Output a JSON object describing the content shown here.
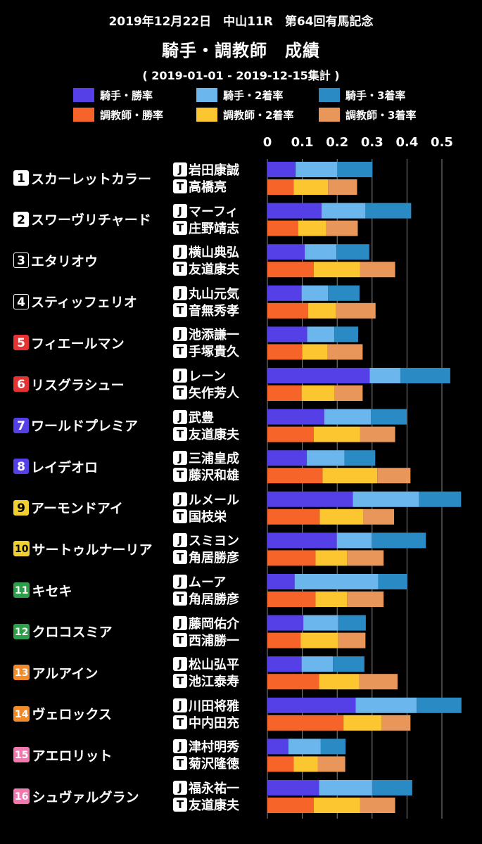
{
  "header": {
    "race": "2019年12月22日　中山11R　第64回有馬記念",
    "title": "騎手・調教師　成績",
    "period": "( 2019-01-01 - 2019-12-15集計 )"
  },
  "colors": {
    "jockey_win": "#5540e8",
    "jockey_place2": "#6cb6ee",
    "jockey_place3": "#2a8ac4",
    "trainer_win": "#f7642a",
    "trainer_place2": "#fcc630",
    "trainer_place3": "#e8965a",
    "gridline": "#888888"
  },
  "role_badges": {
    "jockey": "J",
    "trainer": "T"
  },
  "chart_data": {
    "type": "bar",
    "orientation": "horizontal",
    "stacked": true,
    "x_ticks": [
      "0",
      "0.1",
      "0.2",
      "0.3",
      "0.4",
      "0.5"
    ],
    "xlim": [
      0,
      0.55
    ],
    "grid": true,
    "legend_position": "top",
    "legend": [
      "騎手・勝率",
      "騎手・2着率",
      "騎手・3着率",
      "調教師・勝率",
      "調教師・2着率",
      "調教師・3着率"
    ],
    "horses": [
      {
        "num": "1",
        "name": "スカーレットカラー",
        "badge_bg": "#ffffff",
        "badge_fg": "#000000",
        "badge_border": "#ffffff",
        "jockey": "岩田康誠",
        "trainer": "高橋亮",
        "jockey_rates": [
          0.081,
          0.119,
          0.101
        ],
        "trainer_rates": [
          0.075,
          0.099,
          0.083
        ]
      },
      {
        "num": "2",
        "name": "スワーヴリチャード",
        "badge_bg": "#ffffff",
        "badge_fg": "#000000",
        "badge_border": "#ffffff",
        "jockey": "マーフィ",
        "trainer": "庄野靖志",
        "jockey_rates": [
          0.155,
          0.126,
          0.131
        ],
        "trainer_rates": [
          0.088,
          0.081,
          0.09
        ]
      },
      {
        "num": "3",
        "name": "エタリオウ",
        "badge_bg": "#000000",
        "badge_fg": "#ffffff",
        "badge_border": "#ffffff",
        "jockey": "横山典弘",
        "trainer": "友道康夫",
        "jockey_rates": [
          0.107,
          0.091,
          0.094
        ],
        "trainer_rates": [
          0.133,
          0.133,
          0.1
        ]
      },
      {
        "num": "4",
        "name": "スティッフェリオ",
        "badge_bg": "#000000",
        "badge_fg": "#ffffff",
        "badge_border": "#ffffff",
        "jockey": "丸山元気",
        "trainer": "音無秀孝",
        "jockey_rates": [
          0.098,
          0.076,
          0.09
        ],
        "trainer_rates": [
          0.117,
          0.08,
          0.113
        ]
      },
      {
        "num": "5",
        "name": "フィエールマン",
        "badge_bg": "#e53333",
        "badge_fg": "#ffffff",
        "badge_border": "#e53333",
        "jockey": "池添謙一",
        "trainer": "手塚貴久",
        "jockey_rates": [
          0.114,
          0.078,
          0.068
        ],
        "trainer_rates": [
          0.1,
          0.073,
          0.1
        ]
      },
      {
        "num": "6",
        "name": "リスグラシュー",
        "badge_bg": "#e53333",
        "badge_fg": "#ffffff",
        "badge_border": "#e53333",
        "jockey": "レーン",
        "trainer": "矢作芳人",
        "jockey_rates": [
          0.293,
          0.088,
          0.143
        ],
        "trainer_rates": [
          0.098,
          0.095,
          0.08
        ]
      },
      {
        "num": "7",
        "name": "ワールドプレミア",
        "badge_bg": "#5540e8",
        "badge_fg": "#ffffff",
        "badge_border": "#5540e8",
        "jockey": "武豊",
        "trainer": "友道康夫",
        "jockey_rates": [
          0.163,
          0.134,
          0.102
        ],
        "trainer_rates": [
          0.133,
          0.133,
          0.1
        ]
      },
      {
        "num": "8",
        "name": "レイデオロ",
        "badge_bg": "#5540e8",
        "badge_fg": "#ffffff",
        "badge_border": "#5540e8",
        "jockey": "三浦皇成",
        "trainer": "藤沢和雄",
        "jockey_rates": [
          0.113,
          0.108,
          0.088
        ],
        "trainer_rates": [
          0.158,
          0.157,
          0.095
        ]
      },
      {
        "num": "9",
        "name": "アーモンドアイ",
        "badge_bg": "#f0d030",
        "badge_fg": "#000000",
        "badge_border": "#f0d030",
        "jockey": "ルメール",
        "trainer": "国枝栄",
        "jockey_rates": [
          0.245,
          0.19,
          0.12
        ],
        "trainer_rates": [
          0.15,
          0.125,
          0.088
        ]
      },
      {
        "num": "10",
        "name": "サートゥルナーリア",
        "badge_bg": "#f0d030",
        "badge_fg": "#000000",
        "badge_border": "#f0d030",
        "jockey": "スミヨン",
        "trainer": "角居勝彦",
        "jockey_rates": [
          0.199,
          0.1,
          0.155
        ],
        "trainer_rates": [
          0.138,
          0.09,
          0.105
        ]
      },
      {
        "num": "11",
        "name": "キセキ",
        "badge_bg": "#2e9e4a",
        "badge_fg": "#ffffff",
        "badge_border": "#2e9e4a",
        "jockey": "ムーア",
        "trainer": "角居勝彦",
        "jockey_rates": [
          0.078,
          0.24,
          0.083
        ],
        "trainer_rates": [
          0.138,
          0.09,
          0.105
        ]
      },
      {
        "num": "12",
        "name": "クロコスミア",
        "badge_bg": "#2e9e4a",
        "badge_fg": "#ffffff",
        "badge_border": "#2e9e4a",
        "jockey": "藤岡佑介",
        "trainer": "西浦勝一",
        "jockey_rates": [
          0.103,
          0.1,
          0.079
        ],
        "trainer_rates": [
          0.095,
          0.108,
          0.078
        ]
      },
      {
        "num": "13",
        "name": "アルアイン",
        "badge_bg": "#f08a2a",
        "badge_fg": "#ffffff",
        "badge_border": "#f08a2a",
        "jockey": "松山弘平",
        "trainer": "池江泰寿",
        "jockey_rates": [
          0.098,
          0.09,
          0.09
        ],
        "trainer_rates": [
          0.148,
          0.115,
          0.11
        ]
      },
      {
        "num": "14",
        "name": "ヴェロックス",
        "badge_bg": "#f08a2a",
        "badge_fg": "#ffffff",
        "badge_border": "#f08a2a",
        "jockey": "川田将雅",
        "trainer": "中内田充",
        "jockey_rates": [
          0.253,
          0.175,
          0.128
        ],
        "trainer_rates": [
          0.218,
          0.11,
          0.082
        ]
      },
      {
        "num": "15",
        "name": "アエロリット",
        "badge_bg": "#f07ab0",
        "badge_fg": "#ffffff",
        "badge_border": "#f07ab0",
        "jockey": "津村明秀",
        "trainer": "菊沢隆徳",
        "jockey_rates": [
          0.06,
          0.093,
          0.071
        ],
        "trainer_rates": [
          0.075,
          0.07,
          0.078
        ]
      },
      {
        "num": "16",
        "name": "シュヴァルグラン",
        "badge_bg": "#f07ab0",
        "badge_fg": "#ffffff",
        "badge_border": "#f07ab0",
        "jockey": "福永祐一",
        "trainer": "友道康夫",
        "jockey_rates": [
          0.148,
          0.152,
          0.115
        ],
        "trainer_rates": [
          0.133,
          0.133,
          0.1
        ]
      }
    ]
  }
}
